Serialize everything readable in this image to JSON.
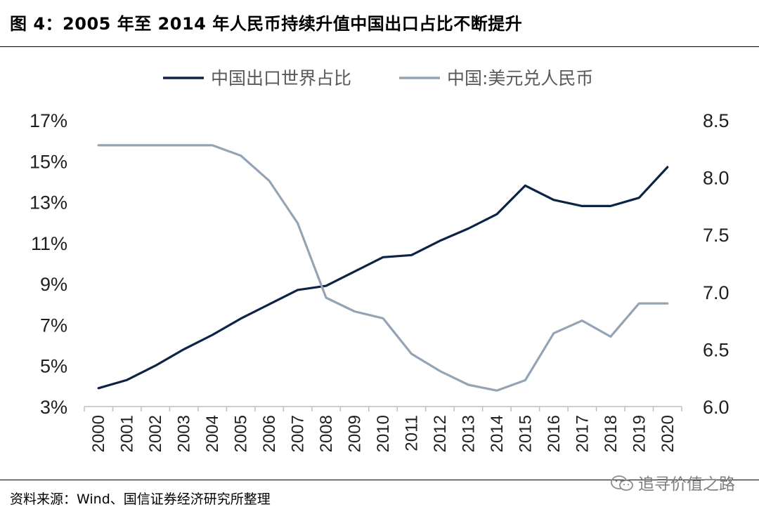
{
  "header": {
    "title": "图 4：2005 年至 2014 年人民币持续升值中国出口占比不断提升"
  },
  "footer": {
    "source": "资料来源：Wind、国信证券经济研究所整理",
    "watermark": "追寻价值之路",
    "watermark_icon": "wechat-icon"
  },
  "colors": {
    "export_share": "#0d2346",
    "usd_cny": "#95a4b4",
    "axis": "#bfbfbf"
  },
  "chart_data": {
    "type": "line",
    "x": [
      "2000",
      "2001",
      "2002",
      "2003",
      "2004",
      "2005",
      "2006",
      "2007",
      "2008",
      "2009",
      "2010",
      "2011",
      "2012",
      "2013",
      "2014",
      "2015",
      "2016",
      "2017",
      "2018",
      "2019",
      "2020"
    ],
    "series": [
      {
        "name": "中国出口世界占比",
        "axis": "left",
        "color": "#0d2346",
        "values": [
          3.9,
          4.3,
          5.0,
          5.8,
          6.5,
          7.3,
          8.0,
          8.7,
          8.9,
          9.6,
          10.3,
          10.4,
          11.1,
          11.7,
          12.4,
          13.8,
          13.1,
          12.8,
          12.8,
          13.2,
          14.7
        ]
      },
      {
        "name": "中国:美元兑人民币",
        "axis": "right",
        "color": "#95a4b4",
        "values": [
          8.28,
          8.28,
          8.28,
          8.28,
          8.28,
          8.19,
          7.97,
          7.6,
          6.95,
          6.83,
          6.77,
          6.46,
          6.31,
          6.19,
          6.14,
          6.23,
          6.64,
          6.75,
          6.61,
          6.9,
          6.9
        ]
      }
    ],
    "left_axis": {
      "min": 3,
      "max": 17,
      "ticks": [
        "17%",
        "15%",
        "13%",
        "11%",
        "9%",
        "7%",
        "5%",
        "3%"
      ]
    },
    "right_axis": {
      "min": 6.0,
      "max": 8.5,
      "ticks": [
        "8.5",
        "8.0",
        "7.5",
        "7.0",
        "6.5",
        "6.0"
      ]
    },
    "legend_position": "top-center",
    "grid": false
  }
}
